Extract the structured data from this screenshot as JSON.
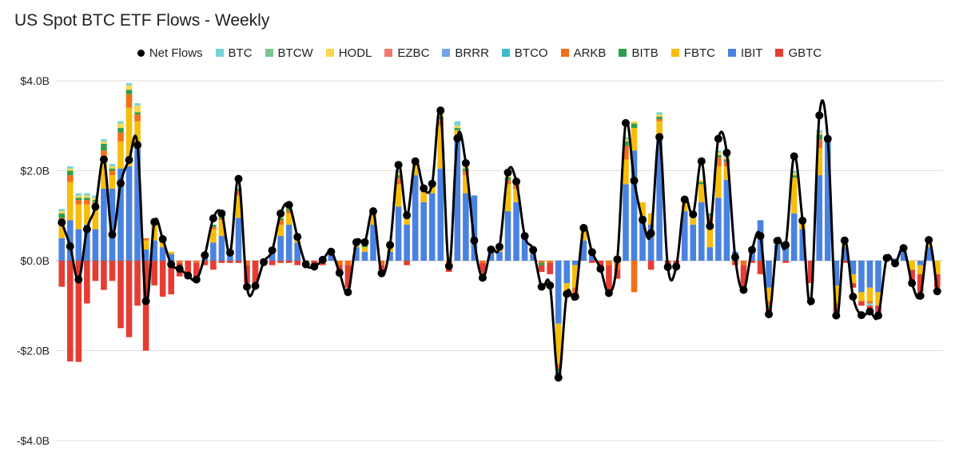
{
  "chart_data": {
    "type": "bar",
    "title": "US Spot BTC ETF Flows - Weekly",
    "stacked": true,
    "ylim": [
      -4.0,
      4.0
    ],
    "y_ticks": [
      4.0,
      2.0,
      0.0,
      -2.0,
      -4.0
    ],
    "y_tick_labels": [
      "$4.0B",
      "$2.0B",
      "$0.0B",
      "-$2.0B",
      "-$4.0B"
    ],
    "ylabel": "",
    "xlabel": "",
    "grid": true,
    "legend_position": "top",
    "colors": {
      "BTC": "#76d3d9",
      "BTCW": "#7cc58f",
      "HODL": "#fbd64b",
      "EZBC": "#f0796f",
      "BRRR": "#70a2ee",
      "BTCO": "#3fbcc9",
      "ARKB": "#f36f1a",
      "BITB": "#2f9e48",
      "FBTC": "#f7bd0b",
      "IBIT": "#4a82e0",
      "GBTC": "#e53d33",
      "Net Flows": "#000000"
    },
    "legend": [
      "Net Flows",
      "BTC",
      "BTCW",
      "HODL",
      "EZBC",
      "BRRR",
      "BTCO",
      "ARKB",
      "BITB",
      "FBTC",
      "IBIT",
      "GBTC"
    ],
    "net_flows": [
      0.85,
      0.32,
      -0.42,
      0.7,
      1.2,
      2.25,
      0.58,
      1.72,
      2.24,
      2.57,
      -0.9,
      0.86,
      0.48,
      -0.08,
      -0.18,
      -0.33,
      -0.42,
      0.12,
      0.94,
      1.05,
      0.18,
      1.82,
      -0.58,
      -0.56,
      -0.03,
      0.23,
      1.05,
      1.24,
      0.53,
      -0.08,
      -0.13,
      0.02,
      0.2,
      -0.27,
      -0.7,
      0.41,
      0.41,
      1.1,
      -0.28,
      0.35,
      2.13,
      1.01,
      2.21,
      1.61,
      1.71,
      3.34,
      -0.12,
      2.72,
      2.17,
      0.45,
      -0.38,
      0.25,
      0.31,
      1.96,
      1.76,
      0.55,
      0.24,
      -0.58,
      -0.55,
      -2.6,
      -0.74,
      -0.8,
      0.73,
      0.19,
      -0.18,
      -0.72,
      0.03,
      3.06,
      1.78,
      0.91,
      0.61,
      2.75,
      -0.14,
      -0.13,
      1.36,
      1.03,
      2.21,
      0.77,
      2.71,
      2.4,
      0.08,
      -0.65,
      0.24,
      0.55,
      -1.19,
      0.44,
      0.35,
      2.32,
      0.89,
      -0.9,
      3.23,
      2.71,
      -1.22,
      0.45,
      -0.8,
      -1.21,
      -1.13,
      -1.22,
      0.06,
      -0.06,
      0.28,
      -0.5,
      -0.78,
      0.46,
      -0.68
    ],
    "series": [
      {
        "name": "IBIT",
        "values": [
          0.5,
          0.9,
          0.7,
          0.8,
          0.7,
          1.6,
          1.6,
          2.05,
          2.1,
          2.5,
          0.25,
          0.45,
          0.3,
          0.15,
          0.0,
          0.0,
          0.0,
          0.05,
          0.4,
          0.55,
          0.15,
          0.95,
          0.0,
          0.0,
          0.0,
          0.15,
          0.55,
          0.8,
          0.4,
          0.0,
          0.0,
          0.05,
          0.15,
          0.0,
          0.0,
          0.3,
          0.2,
          0.8,
          0.0,
          0.2,
          1.2,
          0.8,
          1.9,
          1.3,
          1.5,
          2.05,
          0.0,
          2.7,
          1.5,
          1.45,
          0.0,
          0.2,
          0.2,
          1.1,
          1.3,
          0.5,
          0.2,
          0.0,
          0.0,
          -1.4,
          -0.5,
          -0.1,
          0.45,
          0.2,
          0.0,
          0.0,
          0.1,
          1.7,
          2.45,
          1.0,
          0.8,
          2.7,
          0.0,
          0.0,
          1.1,
          0.8,
          1.3,
          0.3,
          1.4,
          1.8,
          0.2,
          0.0,
          0.3,
          0.9,
          -0.6,
          0.35,
          0.4,
          1.05,
          0.7,
          0.0,
          1.9,
          2.7,
          -0.55,
          0.3,
          -0.3,
          -0.7,
          -0.6,
          -0.7,
          0.1,
          0.05,
          0.2,
          0.0,
          -0.1,
          0.3,
          0.0
        ]
      },
      {
        "name": "FBTC",
        "values": [
          0.35,
          0.85,
          0.55,
          0.45,
          0.5,
          0.7,
          0.3,
          0.6,
          1.3,
          0.6,
          0.2,
          0.35,
          0.2,
          0.05,
          0.0,
          0.0,
          0.0,
          0.0,
          0.3,
          0.35,
          0.0,
          0.5,
          0.0,
          0.0,
          0.0,
          0.05,
          0.25,
          0.25,
          0.1,
          0.0,
          0.0,
          0.0,
          0.05,
          0.0,
          0.0,
          0.05,
          0.1,
          0.2,
          0.0,
          0.1,
          0.5,
          0.2,
          0.3,
          0.3,
          0.2,
          0.95,
          0.0,
          0.2,
          0.4,
          0.0,
          0.0,
          0.05,
          0.1,
          0.6,
          0.3,
          0.1,
          0.0,
          0.0,
          0.0,
          -0.9,
          -0.2,
          -0.5,
          0.2,
          0.0,
          0.0,
          0.0,
          0.0,
          0.55,
          0.5,
          0.3,
          0.25,
          0.4,
          0.0,
          0.0,
          0.2,
          0.2,
          0.4,
          0.5,
          0.7,
          0.3,
          0.0,
          0.0,
          0.0,
          0.0,
          -0.3,
          0.0,
          0.0,
          0.8,
          0.2,
          0.0,
          0.6,
          0.0,
          -0.4,
          0.1,
          -0.2,
          -0.2,
          -0.3,
          -0.3,
          0.0,
          0.0,
          0.0,
          -0.2,
          -0.2,
          0.1,
          -0.3
        ]
      },
      {
        "name": "ARKB",
        "values": [
          0.1,
          0.15,
          0.1,
          0.1,
          0.1,
          0.15,
          0.1,
          0.2,
          0.3,
          0.15,
          0.05,
          0.05,
          0.0,
          -0.05,
          -0.05,
          0.0,
          -0.05,
          0.0,
          0.05,
          0.05,
          0.0,
          0.1,
          -0.1,
          0.0,
          0.0,
          0.0,
          0.1,
          0.05,
          0.0,
          0.0,
          0.0,
          0.0,
          0.0,
          -0.1,
          -0.1,
          0.0,
          0.0,
          0.05,
          -0.1,
          0.0,
          0.15,
          0.0,
          0.0,
          0.0,
          0.0,
          0.15,
          -0.1,
          0.0,
          0.1,
          0.0,
          -0.05,
          0.0,
          0.0,
          0.1,
          0.1,
          0.0,
          0.0,
          -0.05,
          -0.05,
          -0.1,
          -0.1,
          -0.2,
          0.05,
          0.0,
          0.0,
          -0.1,
          -0.2,
          0.3,
          -0.7,
          0.0,
          0.0,
          0.05,
          0.0,
          0.0,
          0.05,
          0.0,
          0.0,
          0.2,
          0.2,
          0.1,
          0.0,
          -0.1,
          0.0,
          0.0,
          -0.1,
          0.0,
          0.0,
          0.0,
          0.0,
          0.0,
          0.2,
          0.0,
          -0.1,
          0.0,
          0.0,
          0.0,
          -0.05,
          0.0,
          0.0,
          -0.05,
          0.0,
          0.0,
          0.0,
          0.0,
          0.0
        ]
      },
      {
        "name": "BITB",
        "values": [
          0.1,
          0.1,
          0.05,
          0.05,
          0.05,
          0.15,
          0.05,
          0.1,
          0.1,
          0.05,
          0.0,
          0.05,
          0.0,
          0.0,
          0.0,
          0.0,
          0.0,
          0.0,
          0.05,
          0.05,
          0.0,
          0.05,
          0.0,
          0.0,
          0.0,
          0.0,
          0.05,
          0.05,
          0.0,
          0.0,
          0.0,
          0.0,
          0.0,
          0.0,
          0.0,
          0.0,
          0.05,
          0.05,
          0.0,
          0.0,
          0.05,
          0.0,
          0.0,
          0.05,
          0.0,
          0.05,
          0.0,
          0.05,
          0.05,
          0.0,
          0.0,
          0.0,
          0.0,
          0.05,
          0.05,
          0.0,
          0.0,
          -0.05,
          0.0,
          -0.05,
          0.0,
          0.0,
          0.05,
          0.0,
          0.0,
          0.0,
          0.0,
          0.1,
          0.1,
          0.0,
          0.0,
          0.05,
          0.0,
          0.0,
          0.0,
          0.0,
          0.05,
          0.05,
          0.05,
          0.05,
          0.0,
          0.0,
          0.0,
          0.0,
          -0.05,
          0.0,
          0.0,
          0.05,
          0.0,
          0.0,
          0.1,
          0.0,
          0.0,
          0.0,
          0.0,
          0.0,
          0.0,
          0.0,
          0.0,
          0.0,
          0.0,
          0.0,
          0.0,
          0.0,
          0.0
        ]
      },
      {
        "name": "HODL",
        "values": [
          0.05,
          0.05,
          0.05,
          0.05,
          0.05,
          0.05,
          0.05,
          0.1,
          0.1,
          0.15,
          0.0,
          0.05,
          0.0,
          0.0,
          0.0,
          0.0,
          0.0,
          0.0,
          0.0,
          0.0,
          0.0,
          0.0,
          0.0,
          0.0,
          0.0,
          0.0,
          0.05,
          0.05,
          0.0,
          0.0,
          0.0,
          0.0,
          0.0,
          0.0,
          0.0,
          0.0,
          0.0,
          0.0,
          0.0,
          0.0,
          0.05,
          0.0,
          0.0,
          0.0,
          0.0,
          0.1,
          0.0,
          0.05,
          0.05,
          0.0,
          0.0,
          0.0,
          0.0,
          0.05,
          0.05,
          0.0,
          0.0,
          0.0,
          0.0,
          0.0,
          0.0,
          0.0,
          0.0,
          0.0,
          0.0,
          0.0,
          0.0,
          0.05,
          0.05,
          0.0,
          0.0,
          0.05,
          0.0,
          0.0,
          0.0,
          0.0,
          0.05,
          0.0,
          0.05,
          0.05,
          0.0,
          0.0,
          0.0,
          0.0,
          0.0,
          0.0,
          0.0,
          0.05,
          0.0,
          0.0,
          0.05,
          0.0,
          0.0,
          0.0,
          0.0,
          0.0,
          0.0,
          0.0,
          0.0,
          0.0,
          0.0,
          0.0,
          0.0,
          0.0,
          0.0
        ]
      },
      {
        "name": "BTC",
        "values": [
          0.05,
          0.05,
          0.05,
          0.05,
          0.05,
          0.05,
          0.05,
          0.05,
          0.05,
          0.05,
          0.0,
          0.0,
          0.0,
          0.0,
          0.0,
          0.0,
          0.0,
          0.0,
          0.0,
          0.05,
          0.0,
          0.0,
          0.0,
          0.0,
          0.0,
          0.0,
          0.05,
          0.05,
          0.0,
          0.0,
          0.0,
          0.0,
          0.0,
          0.0,
          0.0,
          0.0,
          0.0,
          0.05,
          0.0,
          0.0,
          0.05,
          0.0,
          0.0,
          0.0,
          0.0,
          0.05,
          0.0,
          0.1,
          0.05,
          0.0,
          0.0,
          0.0,
          0.0,
          0.05,
          0.0,
          0.0,
          0.0,
          0.0,
          0.0,
          -0.05,
          0.0,
          0.0,
          0.0,
          0.0,
          0.0,
          0.0,
          0.0,
          0.05,
          0.0,
          0.0,
          0.0,
          0.05,
          0.0,
          0.0,
          0.0,
          0.0,
          0.0,
          0.0,
          0.05,
          0.05,
          0.0,
          0.0,
          0.0,
          0.0,
          0.0,
          0.0,
          0.0,
          0.05,
          0.0,
          0.0,
          0.05,
          0.0,
          0.0,
          0.0,
          0.0,
          0.0,
          -0.05,
          0.0,
          0.0,
          0.0,
          0.0,
          0.0,
          0.0,
          0.0,
          0.0
        ]
      },
      {
        "name": "GBTC",
        "values": [
          -0.58,
          -2.24,
          -2.25,
          -0.95,
          -0.45,
          -0.65,
          -0.45,
          -1.5,
          -1.7,
          -1.0,
          -2.0,
          -0.55,
          -0.8,
          -0.7,
          -0.3,
          -0.3,
          -0.4,
          -0.1,
          -0.2,
          -0.05,
          -0.05,
          -0.05,
          -0.4,
          -0.55,
          -0.1,
          -0.1,
          -0.05,
          -0.05,
          -0.1,
          -0.05,
          -0.1,
          -0.1,
          0.0,
          -0.15,
          -0.5,
          0.0,
          0.0,
          0.0,
          -0.15,
          0.0,
          0.0,
          -0.1,
          0.0,
          0.0,
          0.0,
          0.0,
          -0.15,
          0.0,
          0.0,
          0.0,
          -0.3,
          0.0,
          0.0,
          0.0,
          0.0,
          0.0,
          0.0,
          -0.15,
          -0.25,
          -0.05,
          0.0,
          0.0,
          0.0,
          -0.05,
          -0.2,
          -0.6,
          -0.2,
          0.0,
          0.0,
          0.0,
          -0.2,
          0.0,
          -0.15,
          -0.1,
          0.0,
          0.0,
          0.0,
          0.0,
          0.0,
          0.0,
          -0.1,
          -0.55,
          -0.05,
          -0.3,
          -0.1,
          0.0,
          -0.05,
          0.0,
          0.0,
          -0.5,
          0.0,
          0.0,
          -0.1,
          -0.05,
          -0.1,
          -0.1,
          -0.1,
          -0.2,
          0.0,
          -0.05,
          0.0,
          -0.3,
          -0.4,
          0.0,
          -0.3
        ]
      }
    ]
  }
}
